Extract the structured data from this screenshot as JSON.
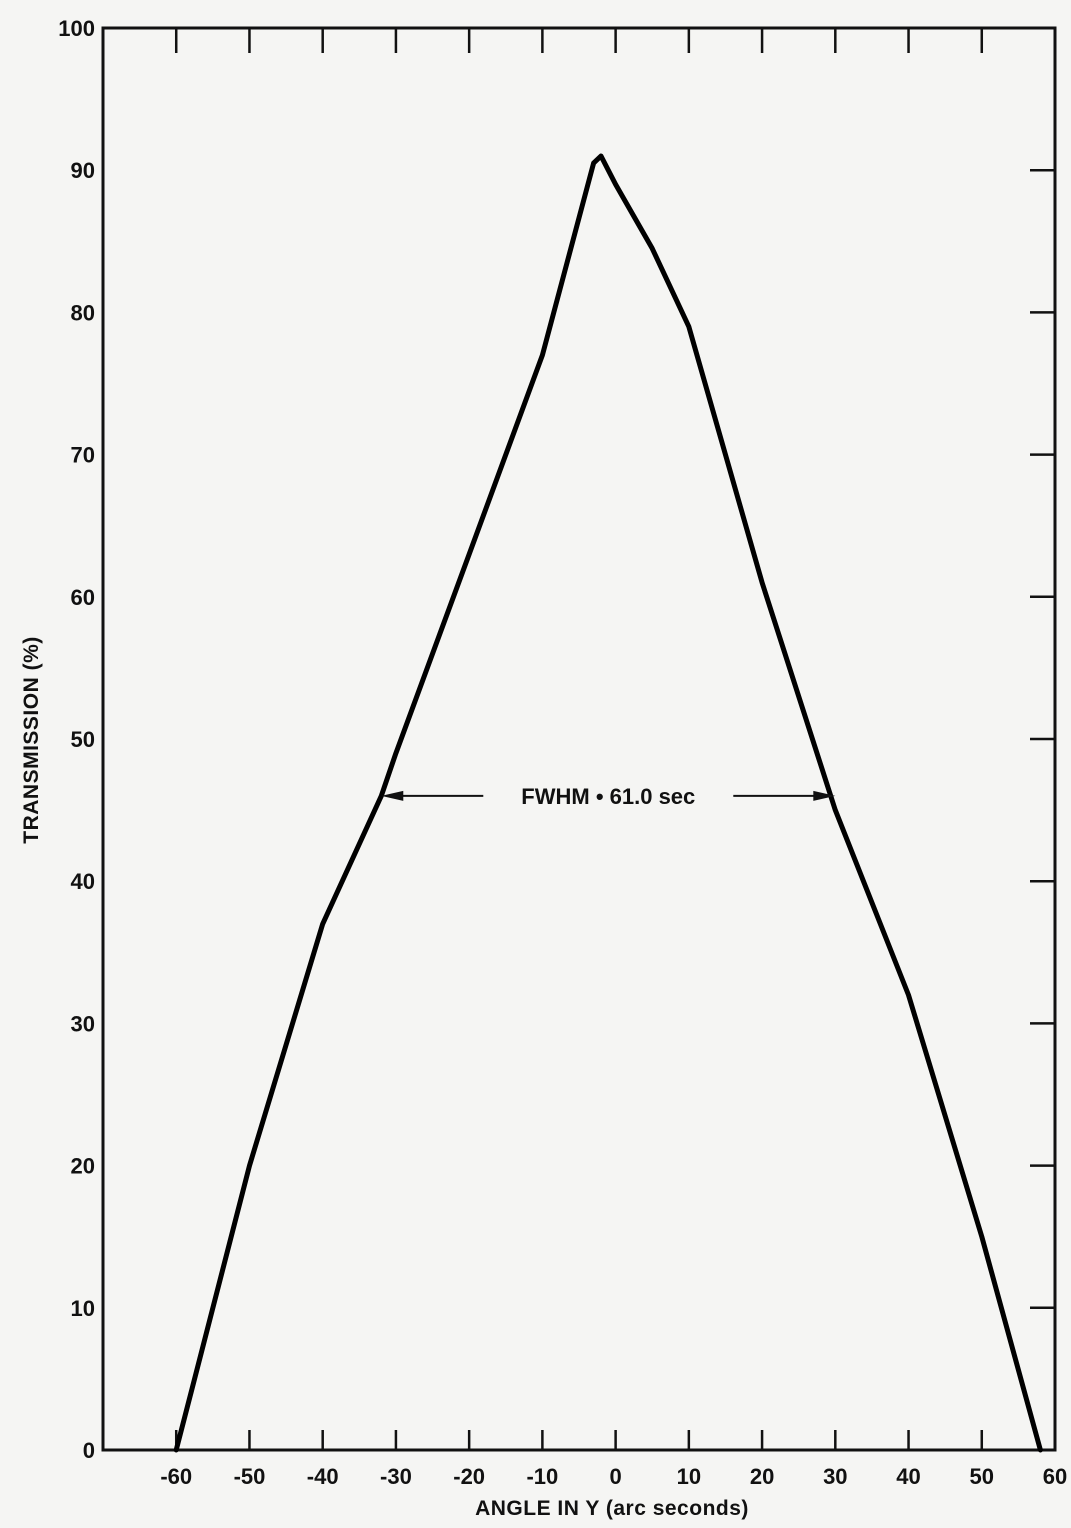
{
  "chart_data": {
    "type": "line",
    "title": "",
    "xlabel": "ANGLE IN Y (arc seconds)",
    "ylabel": "TRANSMISSION (%)",
    "xlim": [
      -70,
      60
    ],
    "ylim": [
      0,
      100
    ],
    "x_ticks": [
      -60,
      -50,
      -40,
      -30,
      -20,
      -10,
      0,
      10,
      20,
      30,
      40,
      50,
      60
    ],
    "x_tick_labels": [
      "-60",
      "-50",
      "-40",
      "-30",
      "-20",
      "-10",
      "0",
      "10",
      "20",
      "30",
      "40",
      "50",
      "60"
    ],
    "y_ticks": [
      0,
      10,
      20,
      30,
      40,
      50,
      60,
      70,
      80,
      90,
      100
    ],
    "y_tick_labels": [
      "0",
      "10",
      "20",
      "30",
      "40",
      "50",
      "60",
      "70",
      "80",
      "90",
      "100"
    ],
    "grid": false,
    "series": [
      {
        "x": [
          -60,
          -58,
          -50,
          -40,
          -32,
          -30,
          -20,
          -10,
          -3,
          -2,
          0,
          5,
          10,
          20,
          30,
          40,
          50,
          58
        ],
        "y": [
          0,
          4,
          20,
          37,
          46,
          49,
          63,
          77,
          90.5,
          91,
          89,
          84.5,
          79,
          61,
          45,
          32,
          15,
          0
        ]
      }
    ],
    "annotations": [
      {
        "text": "FWHM • 61.0 sec",
        "x_start": -32,
        "x_end": 30,
        "y": 46
      }
    ]
  }
}
